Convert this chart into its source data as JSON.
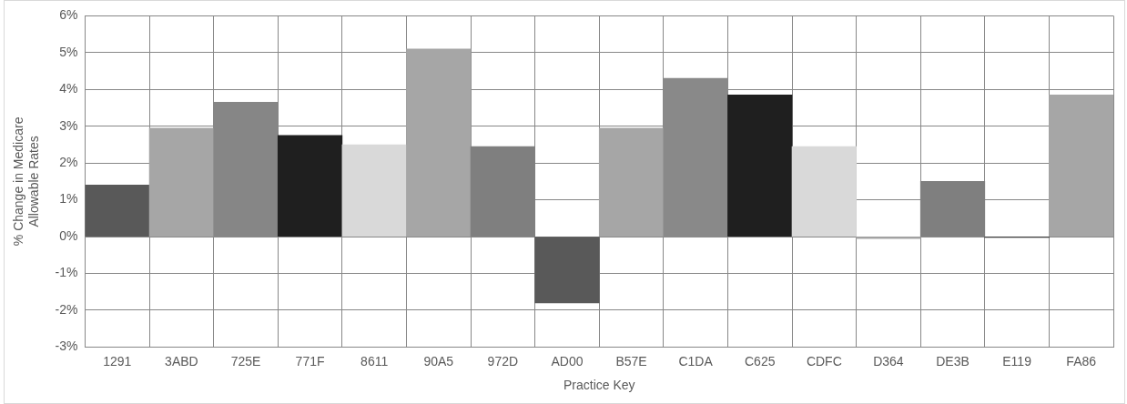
{
  "chart_data": {
    "type": "bar",
    "xlabel": "Practice Key",
    "ylabel": "% Change in Medicare Allowable Rates",
    "categories": [
      "1291",
      "3ABD",
      "725E",
      "771F",
      "8611",
      "90A5",
      "972D",
      "AD00",
      "B57E",
      "C1DA",
      "C625",
      "CDFC",
      "D364",
      "DE3B",
      "E119",
      "FA86"
    ],
    "values": [
      1.4,
      2.95,
      3.65,
      2.75,
      2.5,
      5.1,
      2.45,
      -1.8,
      2.95,
      4.3,
      3.85,
      2.45,
      -0.05,
      1.5,
      -0.02,
      3.85
    ],
    "colors": [
      "#595959",
      "#a6a6a6",
      "#868686",
      "#1f1f1f",
      "#d9d9d9",
      "#a6a6a6",
      "#7f7f7f",
      "#595959",
      "#a6a6a6",
      "#898989",
      "#1f1f1f",
      "#d9d9d9",
      "#a6a6a6",
      "#7f7f7f",
      "#1f1f1f",
      "#a6a6a6"
    ],
    "ylim": [
      -3,
      6
    ],
    "yticks": [
      {
        "value": -3,
        "label": "-3%"
      },
      {
        "value": -2,
        "label": "-2%"
      },
      {
        "value": -1,
        "label": "-1%"
      },
      {
        "value": 0,
        "label": "0%"
      },
      {
        "value": 1,
        "label": "1%"
      },
      {
        "value": 2,
        "label": "2%"
      },
      {
        "value": 3,
        "label": "3%"
      },
      {
        "value": 4,
        "label": "4%"
      },
      {
        "value": 5,
        "label": "5%"
      },
      {
        "value": 6,
        "label": "6%"
      }
    ],
    "grid": true,
    "legend": false
  }
}
